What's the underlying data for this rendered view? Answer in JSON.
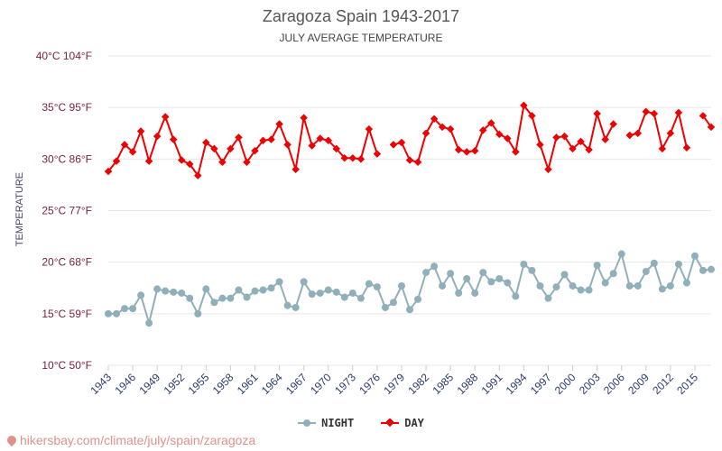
{
  "header": {
    "title": "Zaragoza Spain 1943-2017",
    "subtitle": "JULY AVERAGE TEMPERATURE"
  },
  "watermark": "hikersbay.com/climate/july/spain/zaragoza",
  "legend": {
    "night": "NIGHT",
    "day": "DAY"
  },
  "colors": {
    "night": "#8fb0ba",
    "day": "#ee0000",
    "axis": "#7a1f3d",
    "grid": "#e6e6e6",
    "xaxis": "#2b3a6b"
  },
  "chart_data": {
    "type": "line",
    "title": "Zaragoza Spain 1943-2017",
    "subtitle": "JULY AVERAGE TEMPERATURE",
    "ylabel": "TEMPERATURE",
    "xlabel": "",
    "ylim": [
      10,
      40
    ],
    "yticks": [
      {
        "value": 10,
        "label": "10°C 50°F"
      },
      {
        "value": 15,
        "label": "15°C 59°F"
      },
      {
        "value": 20,
        "label": "20°C 68°F"
      },
      {
        "value": 25,
        "label": "25°C 77°F"
      },
      {
        "value": 30,
        "label": "30°C 86°F"
      },
      {
        "value": 35,
        "label": "35°C 95°F"
      },
      {
        "value": 40,
        "label": "40°C 104°F"
      }
    ],
    "xlim": [
      1943,
      2017
    ],
    "xticks": [
      1943,
      1946,
      1949,
      1952,
      1955,
      1958,
      1961,
      1964,
      1967,
      1970,
      1973,
      1976,
      1979,
      1982,
      1985,
      1988,
      1991,
      1994,
      1997,
      2000,
      2003,
      2006,
      2009,
      2012,
      2015
    ],
    "grid": true,
    "legend_position": "bottom",
    "x": [
      1943,
      1944,
      1945,
      1946,
      1947,
      1948,
      1949,
      1950,
      1951,
      1952,
      1953,
      1954,
      1955,
      1956,
      1957,
      1958,
      1959,
      1960,
      1961,
      1962,
      1963,
      1964,
      1965,
      1966,
      1967,
      1968,
      1969,
      1970,
      1971,
      1972,
      1973,
      1974,
      1975,
      1976,
      1977,
      1978,
      1979,
      1980,
      1981,
      1982,
      1983,
      1984,
      1985,
      1986,
      1987,
      1988,
      1989,
      1990,
      1991,
      1992,
      1993,
      1994,
      1995,
      1996,
      1997,
      1998,
      1999,
      2000,
      2001,
      2002,
      2003,
      2004,
      2005,
      2006,
      2007,
      2008,
      2009,
      2010,
      2011,
      2012,
      2013,
      2014,
      2015,
      2016,
      2017
    ],
    "series": [
      {
        "name": "NIGHT",
        "values": [
          15.0,
          15.0,
          15.5,
          15.5,
          16.8,
          14.1,
          17.4,
          17.2,
          17.1,
          17.0,
          16.5,
          15.0,
          17.4,
          16.1,
          16.5,
          16.5,
          17.3,
          16.6,
          17.2,
          17.3,
          17.5,
          18.1,
          15.8,
          15.6,
          18.1,
          16.9,
          17.0,
          17.3,
          17.1,
          16.6,
          17.0,
          16.5,
          17.9,
          17.6,
          15.6,
          16.1,
          17.7,
          15.4,
          16.4,
          19.0,
          19.6,
          17.7,
          18.9,
          17.0,
          18.4,
          17.0,
          19.0,
          18.1,
          18.4,
          18.0,
          16.7,
          19.8,
          19.2,
          17.7,
          16.5,
          17.6,
          18.8,
          17.7,
          17.3,
          17.3,
          19.7,
          18.0,
          18.9,
          20.8,
          17.7,
          17.7,
          19.1,
          19.9,
          17.4,
          17.7,
          19.8,
          18.0,
          20.6,
          19.2,
          19.3
        ]
      },
      {
        "name": "DAY",
        "values": [
          28.8,
          29.8,
          31.4,
          30.7,
          32.7,
          29.8,
          32.2,
          34.1,
          31.9,
          29.9,
          29.5,
          28.4,
          31.6,
          31.0,
          29.7,
          31.0,
          32.1,
          29.7,
          30.8,
          31.8,
          31.9,
          33.4,
          31.4,
          29.0,
          34.0,
          31.3,
          32.0,
          31.8,
          31.0,
          30.1,
          30.1,
          30.0,
          32.9,
          30.5,
          null,
          31.4,
          31.6,
          29.9,
          29.7,
          32.5,
          33.9,
          33.1,
          32.9,
          30.9,
          30.7,
          30.8,
          32.8,
          33.5,
          32.4,
          32.0,
          30.7,
          35.2,
          34.2,
          31.4,
          29.0,
          32.1,
          32.2,
          31.0,
          31.7,
          30.9,
          34.4,
          31.9,
          33.4,
          null,
          32.3,
          32.5,
          34.6,
          34.4,
          31.0,
          32.5,
          34.5,
          31.1,
          null,
          34.2,
          33.1
        ]
      }
    ]
  }
}
